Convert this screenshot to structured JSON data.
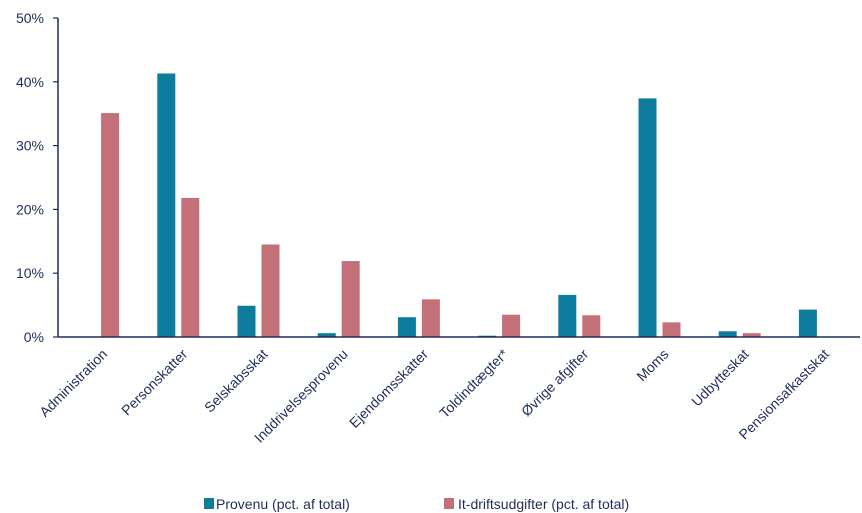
{
  "chart_data": {
    "type": "bar",
    "categories": [
      "Administration",
      "Personskatter",
      "Selskabsskat",
      "Inddrivelsesprovenu",
      "Ejendomsskatter",
      "Toldindtægter*",
      "Øvrige afgifter",
      "Moms",
      "Udbytteskat",
      "Pensionsafkastskat"
    ],
    "series": [
      {
        "name": "Provenu (pct. af total)",
        "color": "#0e7c9c",
        "values": [
          0,
          41.3,
          4.9,
          0.6,
          3.1,
          0.2,
          6.6,
          37.4,
          0.9,
          4.3
        ]
      },
      {
        "name": "It-driftsudgifter (pct. af total)",
        "color": "#c47078",
        "values": [
          35.1,
          21.8,
          14.5,
          11.9,
          5.9,
          3.5,
          3.4,
          2.3,
          0.6,
          0
        ]
      }
    ],
    "ylim": [
      0,
      50
    ],
    "yticks": [
      "0%",
      "10%",
      "20%",
      "30%",
      "40%",
      "50%"
    ],
    "axis_color": "#1f2d5a",
    "grid": false,
    "legend_position": "bottom"
  }
}
